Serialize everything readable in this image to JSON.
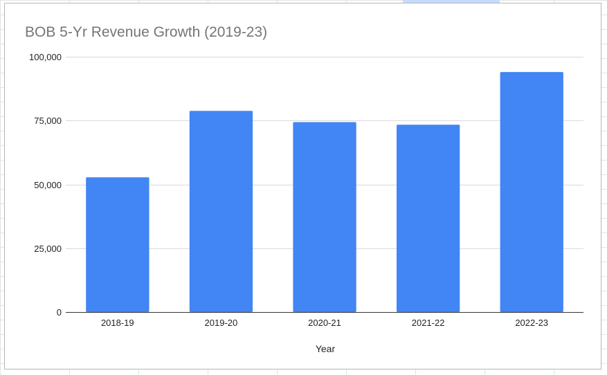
{
  "chart_data": {
    "type": "bar",
    "title": "BOB 5-Yr Revenue Growth (2019-23)",
    "xlabel": "Year",
    "ylabel": "",
    "categories": [
      "2018-19",
      "2019-20",
      "2020-21",
      "2021-22",
      "2022-23"
    ],
    "values": [
      52800,
      78800,
      74400,
      73400,
      94000
    ],
    "ylim": [
      0,
      100000
    ],
    "yticks": [
      0,
      25000,
      50000,
      75000,
      100000
    ],
    "ytick_labels": [
      "0",
      "25,000",
      "50,000",
      "75,000",
      "100,000"
    ],
    "grid": true,
    "legend": "none",
    "bar_color": "#4285f4"
  }
}
